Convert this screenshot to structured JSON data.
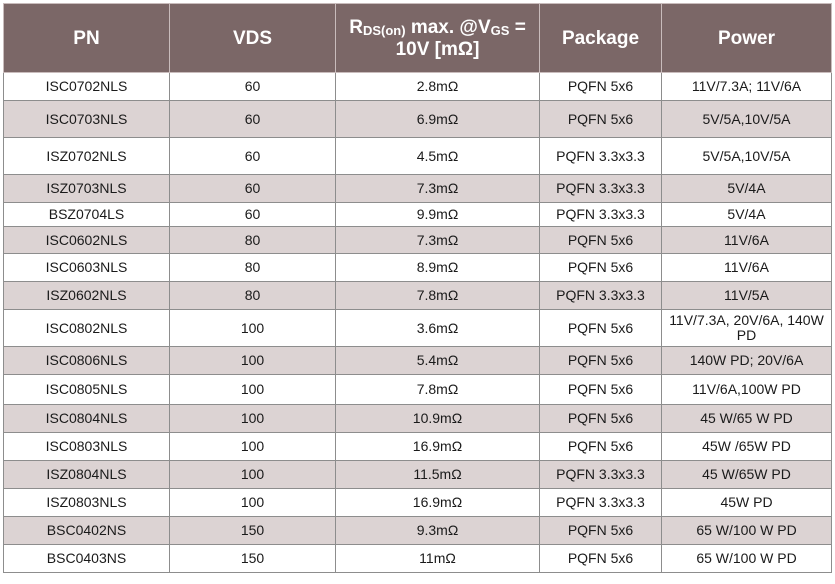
{
  "headers": {
    "pn": "PN",
    "vds": "VDS",
    "rds_r": "R",
    "rds_sub1": "DS(on)",
    "rds_mid": " max. @V",
    "rds_sub2": "GS",
    "rds_end": " = 10V [mΩ]",
    "package": "Package",
    "power": "Power"
  },
  "rows": [
    {
      "pn": "ISC0702NLS",
      "vds": "60",
      "rds": "2.8mΩ",
      "package": "PQFN 5x6",
      "power": "11V/7.3A; 11V/6A"
    },
    {
      "pn": "ISC0703NLS",
      "vds": "60",
      "rds": "6.9mΩ",
      "package": "PQFN 5x6",
      "power": "5V/5A,10V/5A"
    },
    {
      "pn": "ISZ0702NLS",
      "vds": "60",
      "rds": "4.5mΩ",
      "package": "PQFN 3.3x3.3",
      "power": "5V/5A,10V/5A"
    },
    {
      "pn": "ISZ0703NLS",
      "vds": "60",
      "rds": "7.3mΩ",
      "package": "PQFN 3.3x3.3",
      "power": "5V/4A"
    },
    {
      "pn": "BSZ0704LS",
      "vds": "60",
      "rds": "9.9mΩ",
      "package": "PQFN 3.3x3.3",
      "power": "5V/4A"
    },
    {
      "pn": "ISC0602NLS",
      "vds": "80",
      "rds": "7.3mΩ",
      "package": "PQFN 5x6",
      "power": "11V/6A"
    },
    {
      "pn": "ISC0603NLS",
      "vds": "80",
      "rds": "8.9mΩ",
      "package": "PQFN 5x6",
      "power": "11V/6A"
    },
    {
      "pn": "ISZ0602NLS",
      "vds": "80",
      "rds": "7.8mΩ",
      "package": "PQFN 3.3x3.3",
      "power": "11V/5A"
    },
    {
      "pn": "ISC0802NLS",
      "vds": "100",
      "rds": "3.6mΩ",
      "package": "PQFN 5x6",
      "power": "11V/7.3A, 20V/6A, 140W PD"
    },
    {
      "pn": "ISC0806NLS",
      "vds": "100",
      "rds": "5.4mΩ",
      "package": "PQFN 5x6",
      "power": "140W PD; 20V/6A"
    },
    {
      "pn": "ISC0805NLS",
      "vds": "100",
      "rds": "7.8mΩ",
      "package": "PQFN 5x6",
      "power": "11V/6A,100W PD"
    },
    {
      "pn": "ISC0804NLS",
      "vds": "100",
      "rds": "10.9mΩ",
      "package": "PQFN 5x6",
      "power": "45 W/65 W PD"
    },
    {
      "pn": "ISC0803NLS",
      "vds": "100",
      "rds": "16.9mΩ",
      "package": "PQFN 5x6",
      "power": "45W /65W PD"
    },
    {
      "pn": "ISZ0804NLS",
      "vds": "100",
      "rds": "11.5mΩ",
      "package": "PQFN 3.3x3.3",
      "power": "45 W/65W PD"
    },
    {
      "pn": "ISZ0803NLS",
      "vds": "100",
      "rds": "16.9mΩ",
      "package": "PQFN 3.3x3.3",
      "power": "45W PD"
    },
    {
      "pn": "BSC0402NS",
      "vds": "150",
      "rds": "9.3mΩ",
      "package": "PQFN 5x6",
      "power": "65 W/100 W PD"
    },
    {
      "pn": "BSC0403NS",
      "vds": "150",
      "rds": "11mΩ",
      "package": "PQFN 5x6",
      "power": "65 W/100 W PD"
    }
  ]
}
